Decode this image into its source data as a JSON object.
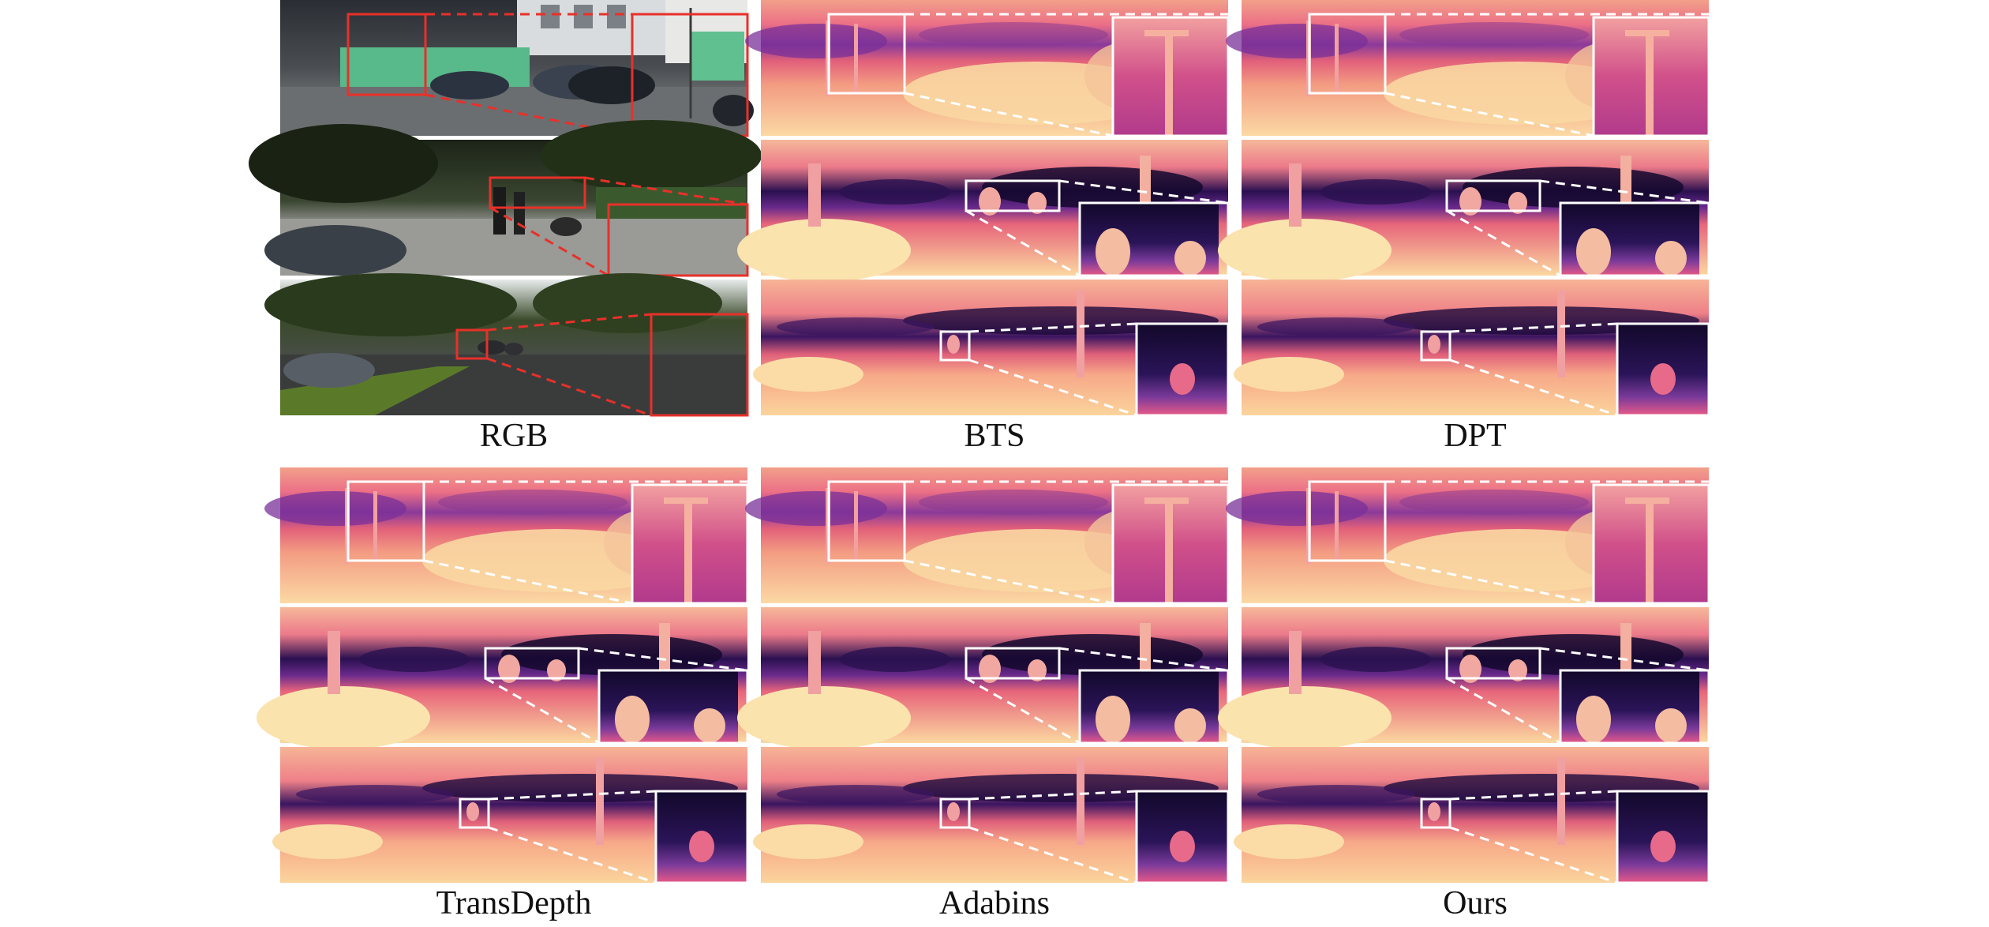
{
  "figure": {
    "methods": [
      "RGB",
      "BTS",
      "DPT",
      "TransDepth",
      "Adabins",
      "Ours"
    ],
    "scenes": [
      "street-with-lamp-post",
      "pedestrian-crossing",
      "tree-lined-road"
    ],
    "colors": {
      "rgb_highlight": "#e8302a",
      "depth_highlight": "#ffffff",
      "depth_near": "#f6dc9a",
      "depth_mid": "#e5506e",
      "depth_far": "#1a0a38"
    }
  }
}
